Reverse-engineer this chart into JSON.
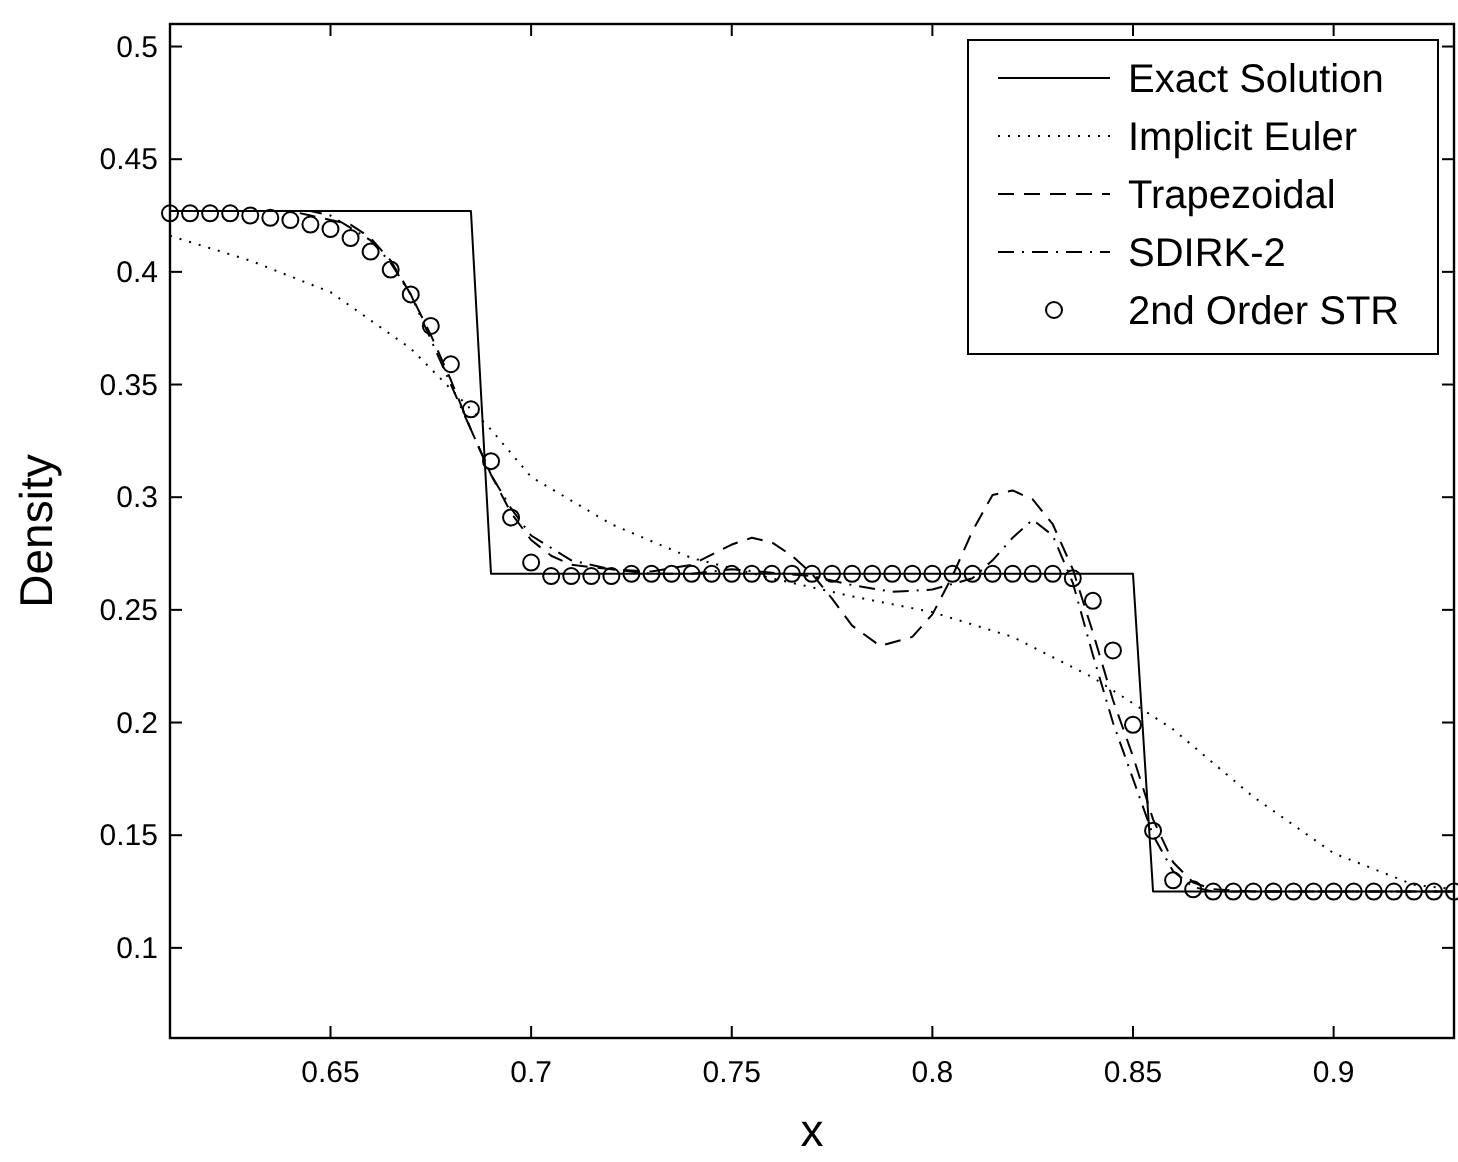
{
  "chart_data": {
    "type": "line",
    "xlabel": "x",
    "ylabel": "Density",
    "xlim": [
      0.61,
      0.93
    ],
    "ylim": [
      0.06,
      0.51
    ],
    "xticks": [
      0.65,
      0.7,
      0.75,
      0.8,
      0.85,
      0.9
    ],
    "yticks": [
      0.1,
      0.15,
      0.2,
      0.25,
      0.3,
      0.35,
      0.4,
      0.45,
      0.5
    ],
    "grid": false,
    "legend": "top right",
    "series": [
      {
        "name": "Exact Solution",
        "color": "#000000",
        "line_style": "solid",
        "x": [
          0.61,
          0.685,
          0.69,
          0.85,
          0.855,
          0.93
        ],
        "values": [
          0.427,
          0.427,
          0.266,
          0.266,
          0.125,
          0.125
        ]
      },
      {
        "name": "Implicit Euler",
        "color": "#000000",
        "line_style": "dotted",
        "x": [
          0.61,
          0.63,
          0.65,
          0.67,
          0.68,
          0.69,
          0.7,
          0.72,
          0.74,
          0.76,
          0.78,
          0.8,
          0.82,
          0.84,
          0.86,
          0.88,
          0.9,
          0.92,
          0.93
        ],
        "values": [
          0.416,
          0.405,
          0.391,
          0.366,
          0.348,
          0.33,
          0.309,
          0.288,
          0.273,
          0.264,
          0.256,
          0.249,
          0.238,
          0.22,
          0.197,
          0.167,
          0.142,
          0.128,
          0.126
        ]
      },
      {
        "name": "Trapezoidal",
        "color": "#000000",
        "line_style": "dashed",
        "x": [
          0.61,
          0.64,
          0.645,
          0.655,
          0.66,
          0.665,
          0.67,
          0.675,
          0.68,
          0.685,
          0.69,
          0.695,
          0.7,
          0.705,
          0.71,
          0.72,
          0.73,
          0.74,
          0.75,
          0.755,
          0.76,
          0.765,
          0.77,
          0.775,
          0.78,
          0.787,
          0.795,
          0.8,
          0.805,
          0.81,
          0.815,
          0.82,
          0.825,
          0.83,
          0.835,
          0.84,
          0.845,
          0.85,
          0.855,
          0.86,
          0.865,
          0.87,
          0.88,
          0.93
        ],
        "values": [
          0.427,
          0.427,
          0.425,
          0.421,
          0.415,
          0.405,
          0.39,
          0.372,
          0.352,
          0.33,
          0.31,
          0.293,
          0.281,
          0.274,
          0.27,
          0.268,
          0.267,
          0.27,
          0.279,
          0.282,
          0.28,
          0.274,
          0.266,
          0.255,
          0.243,
          0.234,
          0.238,
          0.248,
          0.265,
          0.285,
          0.301,
          0.303,
          0.299,
          0.288,
          0.268,
          0.24,
          0.21,
          0.185,
          0.157,
          0.138,
          0.129,
          0.126,
          0.125,
          0.125
        ]
      },
      {
        "name": "SDIRK-2",
        "color": "#000000",
        "line_style": "dashdot",
        "x": [
          0.61,
          0.645,
          0.65,
          0.66,
          0.665,
          0.67,
          0.675,
          0.68,
          0.685,
          0.69,
          0.695,
          0.7,
          0.71,
          0.72,
          0.73,
          0.74,
          0.75,
          0.77,
          0.78,
          0.79,
          0.8,
          0.81,
          0.815,
          0.82,
          0.825,
          0.83,
          0.835,
          0.84,
          0.845,
          0.85,
          0.855,
          0.86,
          0.865,
          0.87,
          0.93
        ],
        "values": [
          0.427,
          0.427,
          0.425,
          0.414,
          0.404,
          0.39,
          0.37,
          0.35,
          0.33,
          0.31,
          0.295,
          0.283,
          0.272,
          0.268,
          0.266,
          0.266,
          0.268,
          0.265,
          0.261,
          0.258,
          0.259,
          0.264,
          0.272,
          0.282,
          0.29,
          0.283,
          0.262,
          0.23,
          0.2,
          0.175,
          0.15,
          0.134,
          0.127,
          0.125,
          0.125
        ]
      },
      {
        "name": "2nd Order STR",
        "type": "scatter",
        "marker": "circle",
        "color": "#000000",
        "x": [
          0.61,
          0.615,
          0.62,
          0.625,
          0.63,
          0.635,
          0.64,
          0.645,
          0.65,
          0.655,
          0.66,
          0.665,
          0.67,
          0.675,
          0.68,
          0.685,
          0.69,
          0.695,
          0.7,
          0.705,
          0.71,
          0.715,
          0.72,
          0.725,
          0.73,
          0.735,
          0.74,
          0.745,
          0.75,
          0.755,
          0.76,
          0.765,
          0.77,
          0.775,
          0.78,
          0.785,
          0.79,
          0.795,
          0.8,
          0.805,
          0.81,
          0.815,
          0.82,
          0.825,
          0.83,
          0.835,
          0.84,
          0.845,
          0.85,
          0.855,
          0.86,
          0.865,
          0.87,
          0.875,
          0.88,
          0.885,
          0.89,
          0.895,
          0.9,
          0.905,
          0.91,
          0.915,
          0.92,
          0.925,
          0.93
        ],
        "values": [
          0.426,
          0.426,
          0.426,
          0.426,
          0.425,
          0.424,
          0.423,
          0.421,
          0.419,
          0.415,
          0.409,
          0.401,
          0.39,
          0.376,
          0.359,
          0.339,
          0.316,
          0.291,
          0.271,
          0.265,
          0.265,
          0.265,
          0.265,
          0.266,
          0.266,
          0.266,
          0.266,
          0.266,
          0.266,
          0.266,
          0.266,
          0.266,
          0.266,
          0.266,
          0.266,
          0.266,
          0.266,
          0.266,
          0.266,
          0.266,
          0.266,
          0.266,
          0.266,
          0.266,
          0.266,
          0.264,
          0.254,
          0.232,
          0.199,
          0.152,
          0.13,
          0.126,
          0.125,
          0.125,
          0.125,
          0.125,
          0.125,
          0.125,
          0.125,
          0.125,
          0.125,
          0.125,
          0.125,
          0.125,
          0.125
        ]
      }
    ]
  }
}
